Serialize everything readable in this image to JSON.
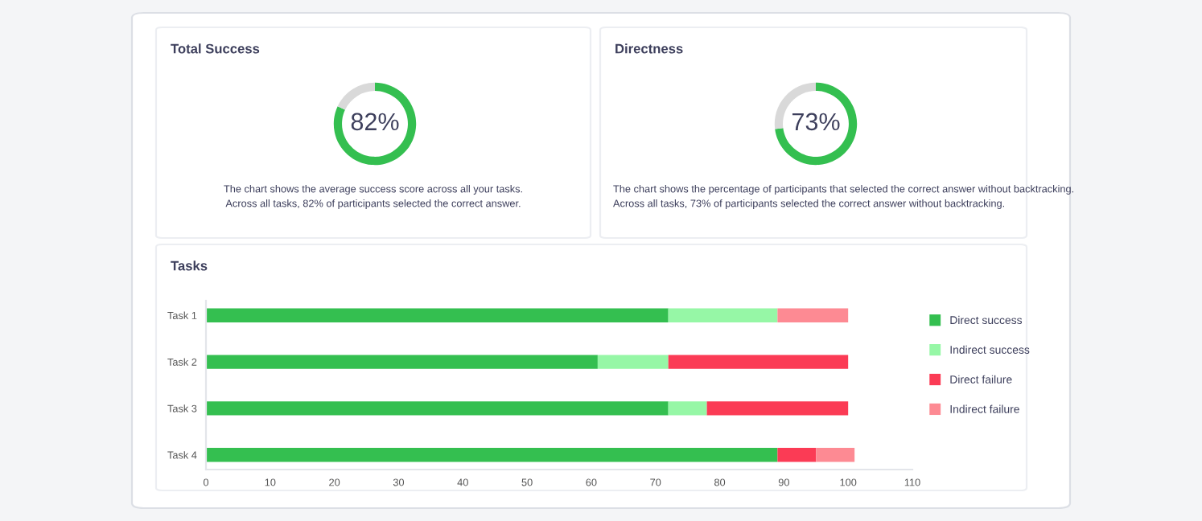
{
  "chart_data": [
    {
      "type": "donut",
      "title": "Total Success",
      "categories": [
        null,
        null
      ],
      "values": [
        82,
        18
      ],
      "colors": [
        "#34bf50",
        "#d9d9d9"
      ],
      "value_labels": [
        "82%",
        null
      ],
      "annotations": [
        "The chart shows the average success score across all your tasks.",
        "Across all tasks, 82% of participants selected the correct answer."
      ]
    },
    {
      "type": "donut",
      "title": "Directness",
      "categories": [
        null,
        null
      ],
      "values": [
        73,
        27
      ],
      "colors": [
        "#34bf50",
        "#d9d9d9"
      ],
      "value_labels": [
        "73%",
        null
      ],
      "annotations": [
        "The chart shows the percentage of participants that selected the correct answer without backtracking.",
        "Across all tasks, 73% of participants selected the correct answer without backtracking."
      ]
    },
    {
      "type": "bar",
      "title": "Tasks",
      "orientation": "horizontal",
      "stacked": true,
      "categories": [
        "Task 1",
        "Task 2",
        "Task 3",
        "Task 4"
      ],
      "series": [
        {
          "name": "Direct success",
          "color": "#34bf50",
          "values": [
            72,
            61,
            72,
            89
          ]
        },
        {
          "name": "Indirect success",
          "color": "#96f7a6",
          "values": [
            17,
            11,
            6,
            0
          ]
        },
        {
          "name": "Direct failure",
          "color": "#fb3b55",
          "values": [
            0,
            28,
            22,
            6
          ]
        },
        {
          "name": "Indirect failure",
          "color": "#fd8a93",
          "values": [
            11,
            0,
            0,
            6
          ]
        }
      ],
      "xlim": [
        0,
        110
      ],
      "xticks": [
        0,
        10,
        20,
        30,
        40,
        50,
        60,
        70,
        80,
        90,
        100,
        110
      ],
      "grid": false,
      "legend": "right"
    }
  ]
}
